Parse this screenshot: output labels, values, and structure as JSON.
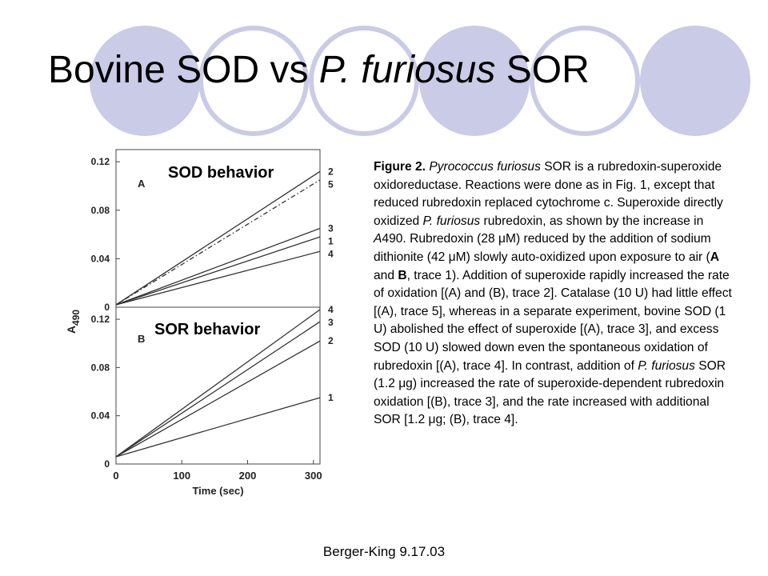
{
  "slide": {
    "title_part1": "Bovine SOD vs ",
    "title_part2": "P. furiosus",
    "title_part3": " SOR",
    "footer": "Berger-King 9.17.03",
    "decor_color": "#c9cbe7"
  },
  "caption": {
    "fig_label": "Figure 2.",
    "s1_italic": "Pyrococcus furiosus",
    "s1_rest": " SOR is a rubredoxin-superoxide oxidoreductase. Reactions were done as in Fig. 1, except that reduced rubredoxin replaced cytochrome c. Superoxide directly oxidized ",
    "s2_italic": "P. furiosus",
    "s2_rest": " rubredoxin, as shown by the increase in ",
    "s3_italic": "A",
    "s3_rest": "490. Rubredoxin (28 μM) reduced by the addition of sodium dithionite (42 μM) slowly auto-oxidized upon exposure to air (",
    "bold_a": "A",
    "and_text": " and ",
    "bold_b": "B",
    "s4_rest": ", trace 1). Addition of superoxide rapidly increased the rate of oxidation [(A) and (B), trace 2]. Catalase (10 U) had little effect [(A), trace 5], whereas in a separate experiment, bovine SOD (1 U) abolished the effect of superoxide [(A), trace 3], and excess SOD (10 U) slowed down even the spontaneous oxidation of rubredoxin [(A), trace 4]. In contrast, addition of ",
    "s5_italic": "P. furiosus",
    "s5_rest": " SOR (1.2 μg) increased the rate of superoxide-dependent rubredoxin oxidation [(B), trace 3], and the rate increased with additional SOR [1.2 μg; (B), trace 4]."
  },
  "chart_data": [
    {
      "type": "line",
      "panel_letter": "A",
      "overlay_label": "SOD behavior",
      "ylabel": "A",
      "ylabel_sub": "490",
      "xlim": [
        0,
        310
      ],
      "ylim": [
        0,
        0.13
      ],
      "yticks": [
        0,
        0.04,
        0.08,
        0.12
      ],
      "ytick_labels": [
        "0",
        "0.04",
        "0.08",
        "0.12"
      ],
      "series": [
        {
          "name": "2",
          "x": [
            0,
            310
          ],
          "y": [
            0.002,
            0.112
          ],
          "style": "solid"
        },
        {
          "name": "5",
          "x": [
            0,
            310
          ],
          "y": [
            0.002,
            0.105
          ],
          "style": "dashdot"
        },
        {
          "name": "3",
          "x": [
            0,
            310
          ],
          "y": [
            0.002,
            0.065
          ],
          "style": "solid"
        },
        {
          "name": "1",
          "x": [
            0,
            310
          ],
          "y": [
            0.002,
            0.058
          ],
          "style": "solid"
        },
        {
          "name": "4",
          "x": [
            0,
            310
          ],
          "y": [
            0.002,
            0.046
          ],
          "style": "solid"
        }
      ]
    },
    {
      "type": "line",
      "panel_letter": "B",
      "overlay_label": "SOR behavior",
      "xlabel": "Time (sec)",
      "xlim": [
        0,
        310
      ],
      "ylim": [
        0,
        0.13
      ],
      "xticks": [
        0,
        100,
        200,
        300
      ],
      "xtick_labels": [
        "0",
        "100",
        "200",
        "300"
      ],
      "yticks": [
        0,
        0.04,
        0.08,
        0.12
      ],
      "ytick_labels": [
        "0",
        "0.04",
        "0.08",
        "0.12"
      ],
      "series": [
        {
          "name": "4",
          "x": [
            0,
            310
          ],
          "y": [
            0.006,
            0.128
          ],
          "style": "solid"
        },
        {
          "name": "3",
          "x": [
            0,
            310
          ],
          "y": [
            0.006,
            0.118
          ],
          "style": "solid"
        },
        {
          "name": "2",
          "x": [
            0,
            310
          ],
          "y": [
            0.006,
            0.102
          ],
          "style": "solid"
        },
        {
          "name": "1",
          "x": [
            0,
            310
          ],
          "y": [
            0.006,
            0.055
          ],
          "style": "solid"
        }
      ]
    }
  ]
}
